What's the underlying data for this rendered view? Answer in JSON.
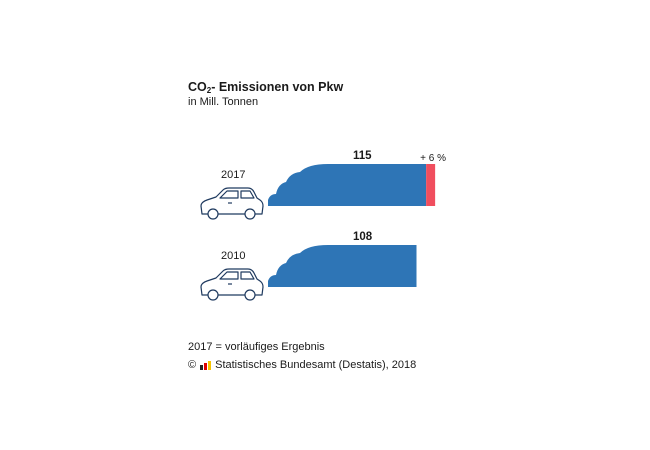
{
  "title_main": "CO",
  "title_sub": "2",
  "title_rest": "- Emissionen von Pkw",
  "subtitle": "in Mill. Tonnen",
  "footnote": "2017 = vorläufiges Ergebnis",
  "source_prefix": "©",
  "source_text": "Statistisches Bundesamt (Destatis), 2018",
  "colors": {
    "bar": "#2e75b6",
    "increase": "#f04e5e",
    "car_stroke": "#1f3a5f"
  },
  "chart_data": {
    "type": "bar",
    "orientation": "horizontal",
    "title": "CO2- Emissionen von Pkw",
    "subtitle": "in Mill. Tonnen",
    "categories": [
      "2017",
      "2010"
    ],
    "values": [
      115,
      108
    ],
    "labels": [
      "115",
      "108"
    ],
    "annotations": [
      {
        "category": "2017",
        "text": "+ 6 %"
      }
    ],
    "grid": false,
    "legend": "none"
  }
}
